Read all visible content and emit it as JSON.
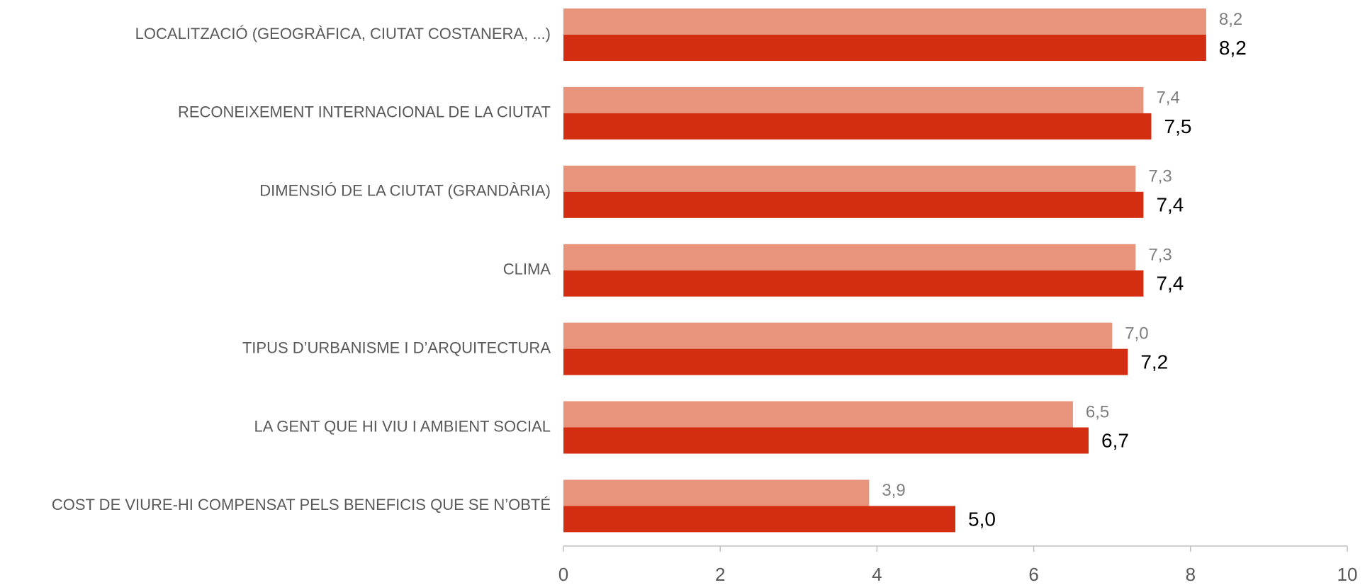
{
  "chart_data": {
    "type": "hbar",
    "categories": [
      "LOCALITZACIÓ (GEOGRÀFICA, CIUTAT COSTANERA, ...)",
      "RECONEIXEMENT INTERNACIONAL DE LA CIUTAT",
      "DIMENSIÓ DE LA CIUTAT (GRANDÀRIA)",
      "CLIMA",
      "TIPUS D’URBANISME I D’ARQUITECTURA",
      "LA GENT QUE HI VIU I AMBIENT SOCIAL",
      "COST DE VIURE-HI COMPENSAT PELS BENEFICIS QUE SE N’OBTÉ"
    ],
    "series": [
      {
        "color": "#e8937b",
        "values": [
          8.2,
          7.4,
          7.3,
          7.3,
          7.0,
          6.5,
          3.9
        ],
        "value_labels": [
          "8,2",
          "7,4",
          "7,3",
          "7,3",
          "7,0",
          "6,5",
          "3,9"
        ]
      },
      {
        "color": "#d42e12",
        "values": [
          8.2,
          7.5,
          7.4,
          7.4,
          7.2,
          6.7,
          5.0
        ],
        "value_labels": [
          "8,2",
          "7,5",
          "7,4",
          "7,4",
          "7,2",
          "6,7",
          "5,0"
        ]
      }
    ],
    "xlim": [
      0,
      10
    ],
    "xticks": [
      0,
      2,
      4,
      6,
      8,
      10
    ]
  }
}
